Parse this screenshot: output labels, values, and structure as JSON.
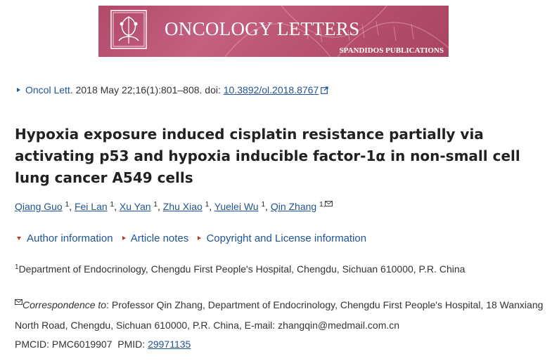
{
  "banner": {
    "title": "ONCOLOGY LETTERS",
    "publisher": "SPANDIDOS PUBLICATIONS",
    "bg_color": "#b8506f"
  },
  "citation": {
    "journal": "Oncol Lett",
    "details": ". 2018 May 22;16(1):801–808. doi: ",
    "doi": "10.3892/ol.2018.8767"
  },
  "title": "Hypoxia exposure induced cisplatin resistance partially via activating p53 and hypoxia inducible factor-1α in non-small cell lung cancer A549 cells",
  "authors": [
    {
      "name": "Qiang Guo",
      "sup": "1"
    },
    {
      "name": "Fei Lan",
      "sup": "1"
    },
    {
      "name": "Xu Yan",
      "sup": "1"
    },
    {
      "name": "Zhu Xiao",
      "sup": "1"
    },
    {
      "name": "Yuelei Wu",
      "sup": "1"
    },
    {
      "name": "Qin Zhang",
      "sup": "1,"
    }
  ],
  "expanders": {
    "author_info": "Author information",
    "article_notes": "Article notes",
    "copyright": "Copyright and License information"
  },
  "affiliation": {
    "sup": "1",
    "text": "Department of Endocrinology, Chengdu First People's Hospital, Chengdu, Sichuan 610000, P.R. China"
  },
  "correspondence": {
    "label": "Correspondence to",
    "text": ": Professor Qin Zhang, Department of Endocrinology, Chengdu First People's Hospital, 18 Wanxiang North Road, Chengdu, Sichuan 610000, P.R. China, E-mail: zhangqin@medmail.com.cn"
  },
  "ids": {
    "pmcid_label": "PMCID: ",
    "pmcid": "PMC6019907",
    "pmid_label": "PMID: ",
    "pmid": "29971135"
  },
  "colors": {
    "link": "#205493",
    "red_marker": "#c0392b"
  }
}
